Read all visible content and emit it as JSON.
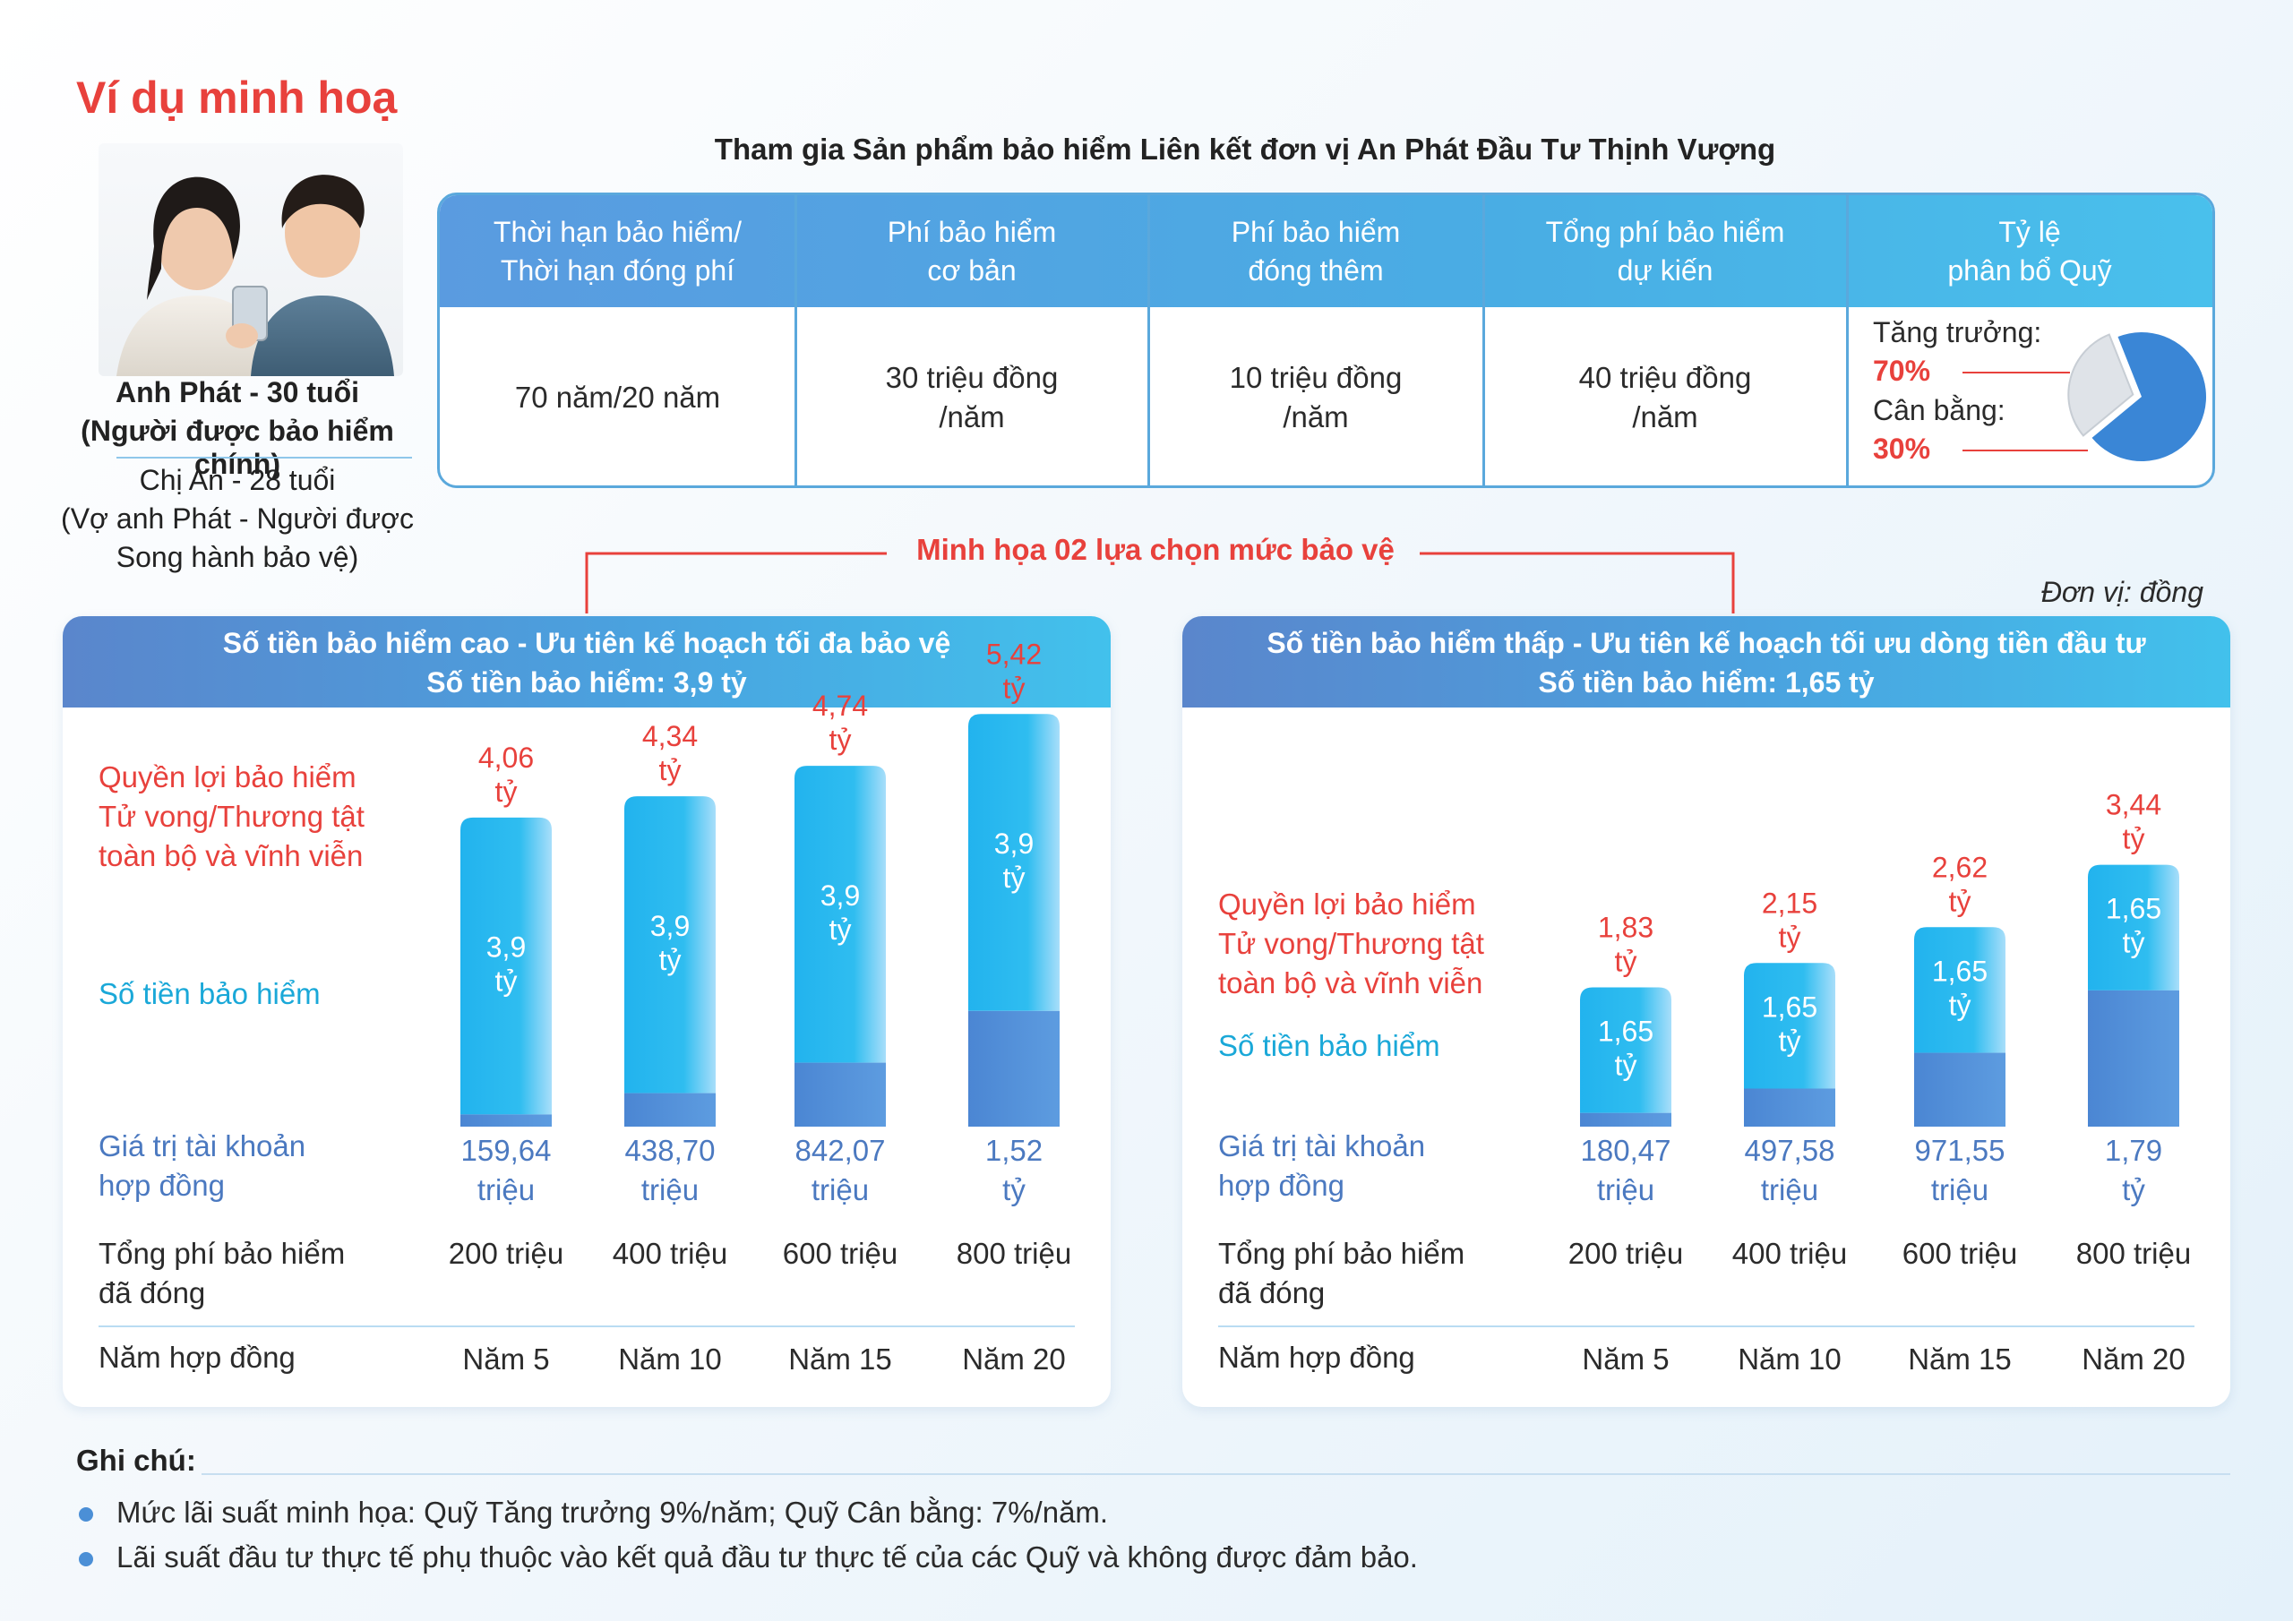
{
  "header": {
    "title": "Ví dụ minh hoạ",
    "product_title": "Tham gia Sản phẩm bảo hiểm Liên kết đơn vị An Phát Đầu Tư Thịnh Vượng"
  },
  "persons": {
    "primary_name": "Anh Phát - 30 tuổi",
    "primary_role": "(Người được bảo hiểm chính)",
    "secondary_name": "Chị An - 28 tuổi",
    "secondary_role_1": "(Vợ anh Phát - Người được",
    "secondary_role_2": "Song hành bảo vệ)"
  },
  "info_table": {
    "headers": [
      [
        "Thời hạn bảo hiểm/",
        "Thời hạn đóng phí"
      ],
      [
        "Phí bảo hiểm",
        "cơ bản"
      ],
      [
        "Phí bảo hiểm",
        "đóng thêm"
      ],
      [
        "Tổng phí bảo hiểm",
        "dự kiến"
      ],
      [
        "Tỷ lệ",
        "phân bổ Quỹ"
      ]
    ],
    "values": [
      [
        "70 năm/20 năm"
      ],
      [
        "30 triệu đồng",
        "/năm"
      ],
      [
        "10 triệu đồng",
        "/năm"
      ],
      [
        "40 triệu đồng",
        "/năm"
      ]
    ],
    "allocation": {
      "growth_label": "Tăng trưởng:",
      "growth_pct": "70%",
      "growth_value": 70,
      "balanced_label": "Cân bằng:",
      "balanced_pct": "30%",
      "balanced_value": 30,
      "colors": [
        "#3a86d6",
        "#dfe3e8"
      ]
    }
  },
  "bracket_label": "Minh họa 02 lựa chọn mức bảo vệ",
  "unit_note": "Đơn vị: đồng",
  "row_labels": {
    "benefit": [
      "Quyền lợi bảo hiểm",
      "Tử vong/Thương tật",
      "toàn bộ và vĩnh viễn"
    ],
    "sum_insured": "Số tiền bảo hiểm",
    "account_value": [
      "Giá trị tài khoản",
      "hợp đồng"
    ],
    "total_premium": [
      "Tổng phí bảo hiểm",
      "đã đóng"
    ],
    "contract_year": "Năm hợp đồng"
  },
  "colors": {
    "red": "#e8413c",
    "cyan": "#1aa8d8",
    "blue": "#4b79c0",
    "bar_top": "#29b7ef",
    "bar_bottom": "#4a86d2"
  },
  "chart_data": [
    {
      "type": "bar",
      "title": "Số tiền bảo hiểm cao - Ưu tiên kế hoạch tối đa bảo vệ",
      "subtitle": "Số tiền bảo hiểm: 3,9 tỷ",
      "categories": [
        "Năm 5",
        "Năm 10",
        "Năm 15",
        "Năm 20"
      ],
      "series": [
        {
          "name": "Số tiền bảo hiểm",
          "values": [
            3.9,
            3.9,
            3.9,
            3.9
          ],
          "labels": [
            [
              "3,9",
              "tỷ"
            ],
            [
              "3,9",
              "tỷ"
            ],
            [
              "3,9",
              "tỷ"
            ],
            [
              "3,9",
              "tỷ"
            ]
          ]
        },
        {
          "name": "Giá trị tài khoản hợp đồng",
          "values": [
            0.16,
            0.44,
            0.84,
            1.52
          ],
          "labels": [
            [
              "159,64",
              "triệu"
            ],
            [
              "438,70",
              "triệu"
            ],
            [
              "842,07",
              "triệu"
            ],
            [
              "1,52",
              "tỷ"
            ]
          ]
        }
      ],
      "totals": {
        "name": "Quyền lợi bảo hiểm Tử vong/Thương tật toàn bộ và vĩnh viễn",
        "values": [
          4.06,
          4.34,
          4.74,
          5.42
        ],
        "labels": [
          [
            "4,06",
            "tỷ"
          ],
          [
            "4,34",
            "tỷ"
          ],
          [
            "4,74",
            "tỷ"
          ],
          [
            "5,42",
            "tỷ"
          ]
        ]
      },
      "total_premium": [
        "200 triệu",
        "400 triệu",
        "600 triệu",
        "800 triệu"
      ],
      "ylim": [
        0,
        5.6
      ]
    },
    {
      "type": "bar",
      "title": "Số tiền bảo hiểm thấp - Ưu tiên kế hoạch tối ưu dòng tiền đầu tư",
      "subtitle": "Số tiền bảo hiểm: 1,65 tỷ",
      "categories": [
        "Năm 5",
        "Năm 10",
        "Năm 15",
        "Năm 20"
      ],
      "series": [
        {
          "name": "Số tiền bảo hiểm",
          "values": [
            1.65,
            1.65,
            1.65,
            1.65
          ],
          "labels": [
            [
              "1,65",
              "tỷ"
            ],
            [
              "1,65",
              "tỷ"
            ],
            [
              "1,65",
              "tỷ"
            ],
            [
              "1,65",
              "tỷ"
            ]
          ]
        },
        {
          "name": "Giá trị tài khoản hợp đồng",
          "values": [
            0.18,
            0.5,
            0.97,
            1.79
          ],
          "labels": [
            [
              "180,47",
              "triệu"
            ],
            [
              "497,58",
              "triệu"
            ],
            [
              "971,55",
              "triệu"
            ],
            [
              "1,79",
              "tỷ"
            ]
          ]
        }
      ],
      "totals": {
        "name": "Quyền lợi bảo hiểm Tử vong/Thương tật toàn bộ và vĩnh viễn",
        "values": [
          1.83,
          2.15,
          2.62,
          3.44
        ],
        "labels": [
          [
            "1,83",
            "tỷ"
          ],
          [
            "2,15",
            "tỷ"
          ],
          [
            "2,62",
            "tỷ"
          ],
          [
            "3,44",
            "tỷ"
          ]
        ]
      },
      "total_premium": [
        "200 triệu",
        "400 triệu",
        "600 triệu",
        "800 triệu"
      ],
      "ylim": [
        0,
        5.6
      ]
    }
  ],
  "notes": {
    "title": "Ghi chú:",
    "items": [
      "Mức lãi suất minh họa: Quỹ Tăng trưởng 9%/năm; Quỹ Cân bằng: 7%/năm.",
      "Lãi suất đầu tư thực tế phụ thuộc vào kết quả đầu tư thực tế của các Quỹ và không được đảm bảo."
    ]
  }
}
